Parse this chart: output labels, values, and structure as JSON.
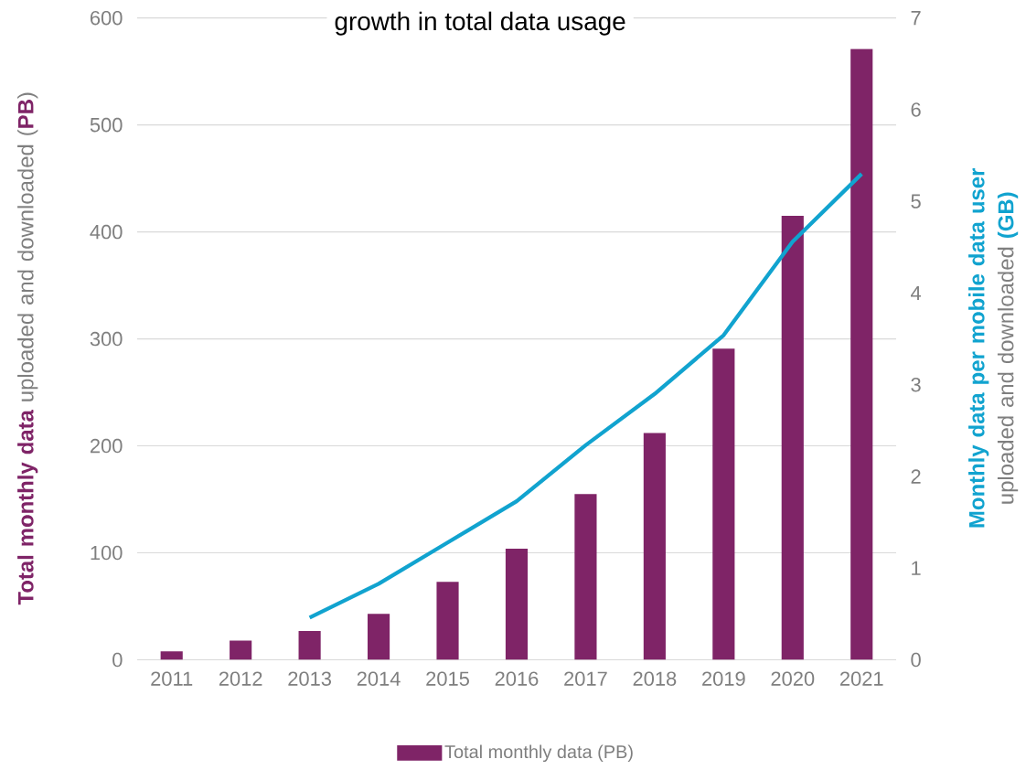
{
  "chart_data": {
    "type": "bar",
    "title": "growth in total data usage",
    "ylabel": "**Total monthly data** uploaded and downloaded (**PB**)",
    "y2label": "**Monthly data per mobile data user** uploaded and downloaded **(GB)**",
    "categories": [
      "2011",
      "2012",
      "2013",
      "2014",
      "2015",
      "2016",
      "2017",
      "2018",
      "2019",
      "2020",
      "2021"
    ],
    "series": [
      {
        "name": "Total monthly data (PB)",
        "color": "#7f2467",
        "values": [
          8,
          18,
          27,
          43,
          73,
          104,
          155,
          212,
          291,
          415,
          571
        ]
      },
      {
        "type": "line",
        "axis": "y2",
        "color": "#11a3cf",
        "values": [
          null,
          null,
          0.46,
          0.83,
          1.28,
          1.73,
          2.34,
          2.9,
          3.54,
          4.56,
          5.3
        ]
      }
    ],
    "ylim": [
      0,
      600
    ],
    "yticks": [
      0,
      100,
      200,
      300,
      400,
      500,
      600
    ],
    "y2lim": [
      0,
      7
    ],
    "y2ticks": [
      0,
      1,
      2,
      3,
      4,
      5,
      6,
      7
    ],
    "grid": "y",
    "legend": "bottom"
  }
}
